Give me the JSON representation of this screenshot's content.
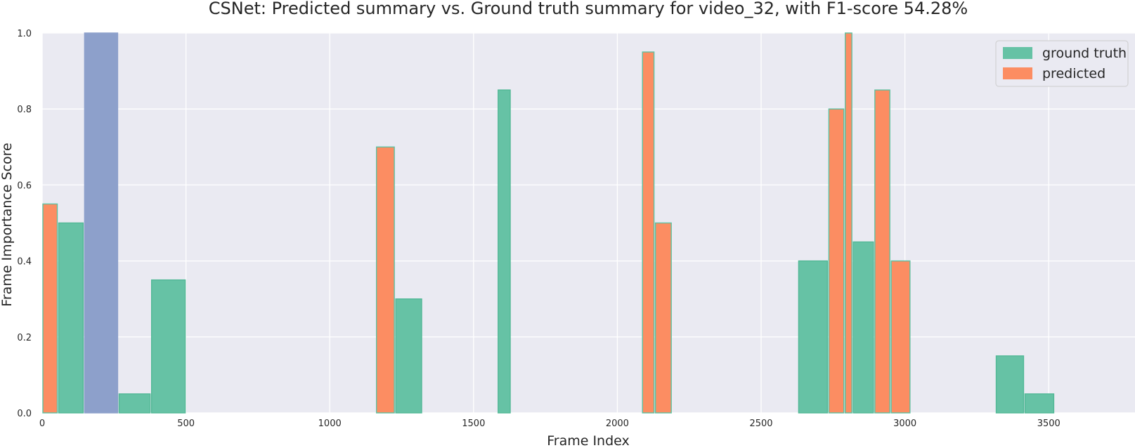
{
  "chart_data": {
    "type": "bar",
    "title": "CSNet: Predicted summary vs. Ground truth summary for video_32, with F1-score 54.28%",
    "xlabel": "Frame Index",
    "ylabel": "Frame Importance Score",
    "xlim": [
      0,
      3800
    ],
    "ylim": [
      0,
      1.0
    ],
    "xticks": [
      0,
      500,
      1000,
      1500,
      2000,
      2500,
      3000,
      3500
    ],
    "yticks": [
      0.0,
      0.2,
      0.4,
      0.6,
      0.8,
      1.0
    ],
    "xtick_labels": [
      "0",
      "500",
      "1000",
      "1500",
      "2000",
      "2500",
      "3000",
      "3500"
    ],
    "ytick_labels": [
      "0.0",
      "0.2",
      "0.4",
      "0.6",
      "0.8",
      "1.0"
    ],
    "grid": true,
    "legend_position": "top-right",
    "colors": {
      "background": "#eaeaf2",
      "grid": "#ffffff",
      "ground_truth": "#66c2a5",
      "predicted": "#fc8d62",
      "overlap": "#8da0cb"
    },
    "series": [
      {
        "name": "ground truth",
        "color": "#66c2a5",
        "segments": [
          {
            "start": 55,
            "end": 145,
            "value": 0.5
          },
          {
            "start": 145,
            "end": 265,
            "value": 1.0
          },
          {
            "start": 265,
            "end": 378,
            "value": 0.05
          },
          {
            "start": 378,
            "end": 500,
            "value": 0.35
          },
          {
            "start": 1227,
            "end": 1322,
            "value": 0.3
          },
          {
            "start": 1583,
            "end": 1630,
            "value": 0.85
          },
          {
            "start": 2628,
            "end": 2733,
            "value": 0.4
          },
          {
            "start": 2818,
            "end": 2893,
            "value": 0.45
          },
          {
            "start": 3315,
            "end": 3415,
            "value": 0.15
          },
          {
            "start": 3415,
            "end": 3520,
            "value": 0.05
          }
        ]
      },
      {
        "name": "predicted",
        "color": "#fc8d62",
        "segments": [
          {
            "start": 0,
            "end": 55,
            "value": 0.55
          },
          {
            "start": 145,
            "end": 265,
            "value": 1.0
          },
          {
            "start": 1160,
            "end": 1227,
            "value": 0.7
          },
          {
            "start": 2085,
            "end": 2130,
            "value": 0.95
          },
          {
            "start": 2130,
            "end": 2190,
            "value": 0.5
          },
          {
            "start": 2733,
            "end": 2790,
            "value": 0.8
          },
          {
            "start": 2790,
            "end": 2818,
            "value": 1.0
          },
          {
            "start": 2893,
            "end": 2950,
            "value": 0.85
          },
          {
            "start": 2950,
            "end": 3020,
            "value": 0.4
          }
        ]
      }
    ]
  }
}
